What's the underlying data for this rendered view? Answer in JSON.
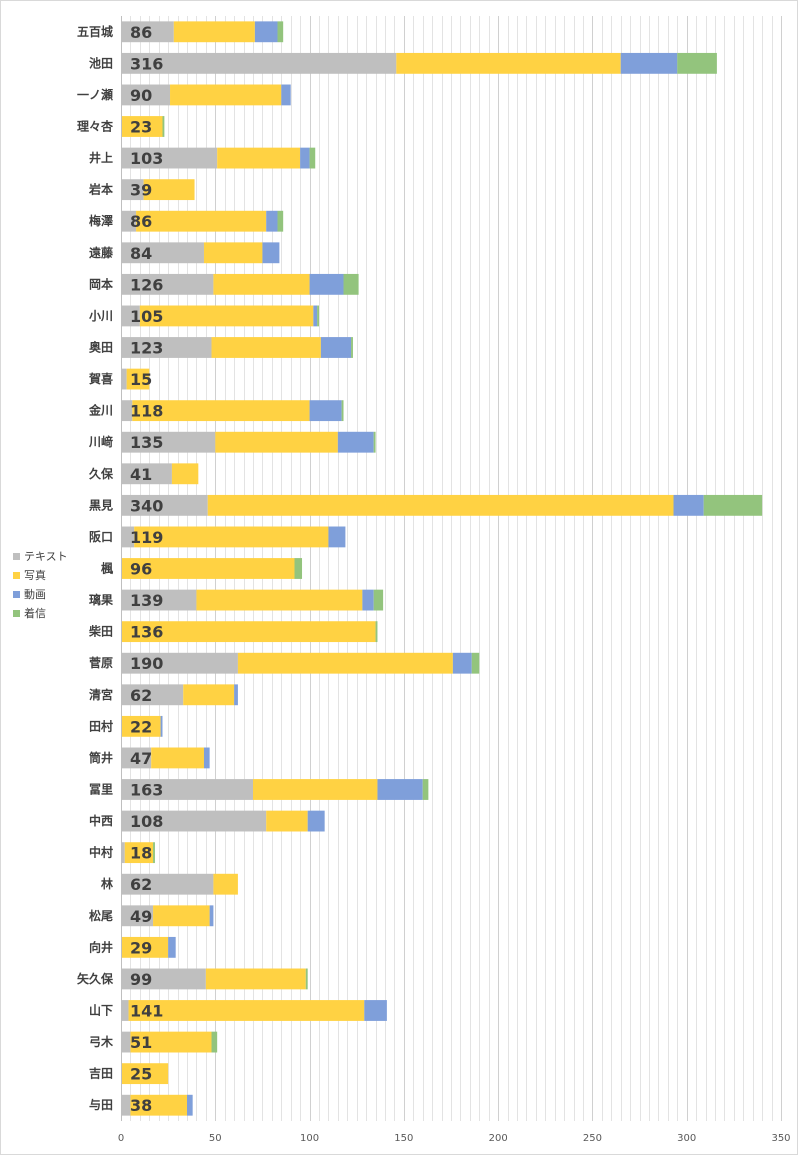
{
  "chart_data": {
    "type": "bar",
    "orientation": "horizontal",
    "stacked": true,
    "title": "",
    "xlabel": "",
    "ylabel": "",
    "xlim": [
      0,
      350
    ],
    "xticks": [
      "0",
      "50",
      "100",
      "150",
      "200",
      "250",
      "300",
      "350"
    ],
    "gridlines": "vertical, every 5 units",
    "legend_position": "left",
    "categories": [
      "五百城",
      "池田",
      "一ノ瀬",
      "理々杏",
      "井上",
      "岩本",
      "梅澤",
      "遠藤",
      "岡本",
      "小川",
      "奥田",
      "賀喜",
      "金川",
      "川﨑",
      "久保",
      "黒見",
      "阪口",
      "楓",
      "璃果",
      "柴田",
      "菅原",
      "清宮",
      "田村",
      "筒井",
      "冨里",
      "中西",
      "中村",
      "林",
      "松尾",
      "向井",
      "矢久保",
      "山下",
      "弓木",
      "吉田",
      "与田"
    ],
    "totals": [
      86,
      316,
      90,
      23,
      103,
      39,
      86,
      84,
      126,
      105,
      123,
      15,
      118,
      135,
      41,
      340,
      119,
      96,
      139,
      136,
      190,
      62,
      22,
      47,
      163,
      108,
      18,
      62,
      49,
      29,
      99,
      141,
      51,
      25,
      38
    ],
    "series": [
      {
        "name": "テキスト",
        "color": "#bfbfbf",
        "values": [
          28,
          146,
          26,
          0,
          51,
          12,
          8,
          44,
          49,
          10,
          48,
          3,
          6,
          50,
          27,
          46,
          7,
          0,
          40,
          0,
          62,
          33,
          0,
          16,
          70,
          77,
          2,
          49,
          17,
          0,
          45,
          4,
          5,
          0,
          5
        ]
      },
      {
        "name": "写真",
        "color": "#ffd243",
        "values": [
          43,
          119,
          59,
          22,
          44,
          27,
          69,
          31,
          51,
          92,
          58,
          12,
          94,
          65,
          14,
          247,
          103,
          92,
          88,
          135,
          114,
          27,
          21,
          28,
          66,
          22,
          15,
          13,
          30,
          25,
          53,
          125,
          43,
          25,
          30
        ]
      },
      {
        "name": "動画",
        "color": "#7f9fda",
        "values": [
          12,
          30,
          5,
          0,
          5,
          0,
          6,
          9,
          18,
          2,
          16,
          0,
          17,
          19,
          0,
          16,
          9,
          0,
          6,
          0,
          10,
          2,
          1,
          3,
          24,
          9,
          0,
          0,
          2,
          4,
          0,
          12,
          0,
          0,
          3
        ]
      },
      {
        "name": "着信",
        "color": "#93c47d",
        "values": [
          3,
          21,
          0,
          1,
          3,
          0,
          3,
          0,
          8,
          1,
          1,
          0,
          1,
          1,
          0,
          31,
          0,
          4,
          5,
          1,
          4,
          0,
          0,
          0,
          3,
          0,
          1,
          0,
          0,
          0,
          1,
          0,
          3,
          0,
          0
        ]
      }
    ]
  }
}
